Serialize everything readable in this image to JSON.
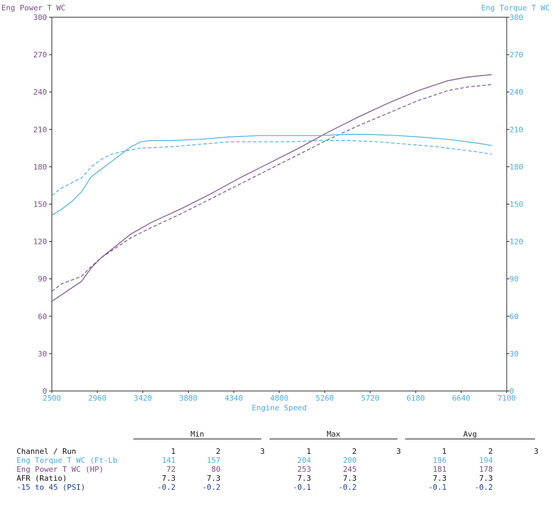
{
  "chart_data": {
    "type": "line",
    "title_left": "Eng Power T WC",
    "title_right": "Eng Torque T WC",
    "xlabel": "Engine Speed",
    "x_ticks": [
      "2500",
      "2960",
      "3420",
      "3880",
      "4340",
      "4800",
      "5260",
      "5720",
      "6180",
      "6640",
      "7100"
    ],
    "y_ticks": [
      "0",
      "30",
      "60",
      "90",
      "120",
      "150",
      "180",
      "210",
      "240",
      "270",
      "300"
    ],
    "xlim": [
      2500,
      7100
    ],
    "ylim": [
      0,
      300
    ],
    "grid": false,
    "colors": {
      "power": "#7a4e86",
      "torque": "#4aaee0",
      "axis_left": "#7a4e86",
      "axis_right": "#4aaee0"
    },
    "series": [
      {
        "name": "Eng Power T WC",
        "axis": "left",
        "run": 1,
        "dash": false,
        "color": "#7a4e86",
        "x": [
          2500,
          2800,
          2900,
          3000,
          3300,
          3500,
          3800,
          4100,
          4400,
          4700,
          5000,
          5300,
          5600,
          5900,
          6200,
          6500,
          6700,
          6950
        ],
        "y": [
          72,
          88,
          99,
          107,
          126,
          135,
          146,
          158,
          171,
          183,
          195,
          208,
          220,
          231,
          241,
          249,
          252,
          254
        ]
      },
      {
        "name": "Eng Power T WC",
        "axis": "left",
        "run": 2,
        "dash": true,
        "color": "#7a4e86",
        "x": [
          2500,
          2600,
          2800,
          2900,
          3000,
          3300,
          3500,
          3800,
          4100,
          4400,
          4700,
          5000,
          5300,
          5600,
          5900,
          6200,
          6500,
          6700,
          6950
        ],
        "y": [
          80,
          86,
          92,
          100,
          107,
          123,
          131,
          142,
          154,
          166,
          178,
          190,
          202,
          213,
          223,
          233,
          241,
          244,
          246
        ]
      },
      {
        "name": "Eng Torque T WC",
        "axis": "right",
        "run": 1,
        "dash": false,
        "color": "#4aaee0",
        "x": [
          2500,
          2600,
          2700,
          2800,
          2850,
          2900,
          3000,
          3100,
          3200,
          3300,
          3400,
          3500,
          3700,
          4000,
          4300,
          4600,
          4900,
          5200,
          5500,
          5700,
          6000,
          6200,
          6500,
          6800,
          6950
        ],
        "y": [
          141,
          146,
          152,
          160,
          166,
          172,
          178,
          184,
          190,
          196,
          200,
          201,
          201,
          202,
          204,
          205,
          205,
          205,
          206,
          206,
          205,
          204,
          202,
          199,
          197
        ]
      },
      {
        "name": "Eng Torque T WC",
        "axis": "right",
        "run": 2,
        "dash": true,
        "color": "#4aaee0",
        "x": [
          2500,
          2600,
          2700,
          2800,
          2900,
          3000,
          3100,
          3200,
          3400,
          3700,
          4000,
          4300,
          4600,
          4900,
          5200,
          5500,
          5800,
          6100,
          6400,
          6600,
          6800,
          6950
        ],
        "y": [
          157,
          163,
          167,
          171,
          180,
          186,
          190,
          192,
          195,
          196,
          198,
          200,
          200,
          200,
          201,
          201,
          200,
          198,
          196,
          194,
          192,
          190
        ]
      }
    ]
  },
  "stats_table": {
    "group_headers": [
      "Min",
      "Max",
      "Avg"
    ],
    "row_header": "Channel / Run",
    "run_labels": [
      "1",
      "2",
      "3"
    ],
    "rows": [
      {
        "name": "Eng Torque T WC (Ft-Lb",
        "color": "#4aaee0",
        "min": [
          "141",
          "157",
          ""
        ],
        "max": [
          "204",
          "200",
          ""
        ],
        "avg": [
          "196",
          "194",
          ""
        ]
      },
      {
        "name": "Eng Power T WC (HP)",
        "color": "#7a4e86",
        "min": [
          "72",
          "80",
          ""
        ],
        "max": [
          "253",
          "245",
          ""
        ],
        "avg": [
          "181",
          "178",
          ""
        ]
      },
      {
        "name": "AFR (Ratio)",
        "color": "#111111",
        "min": [
          "7.3",
          "7.3",
          ""
        ],
        "max": [
          "7.3",
          "7.3",
          ""
        ],
        "avg": [
          "7.3",
          "7.3",
          ""
        ]
      },
      {
        "name": "-15 to 45 (PSI)",
        "color": "#1a3f8f",
        "min": [
          "-0.2",
          "-0.2",
          ""
        ],
        "max": [
          "-0.1",
          "-0.2",
          ""
        ],
        "avg": [
          "-0.1",
          "-0.2",
          ""
        ]
      }
    ]
  }
}
